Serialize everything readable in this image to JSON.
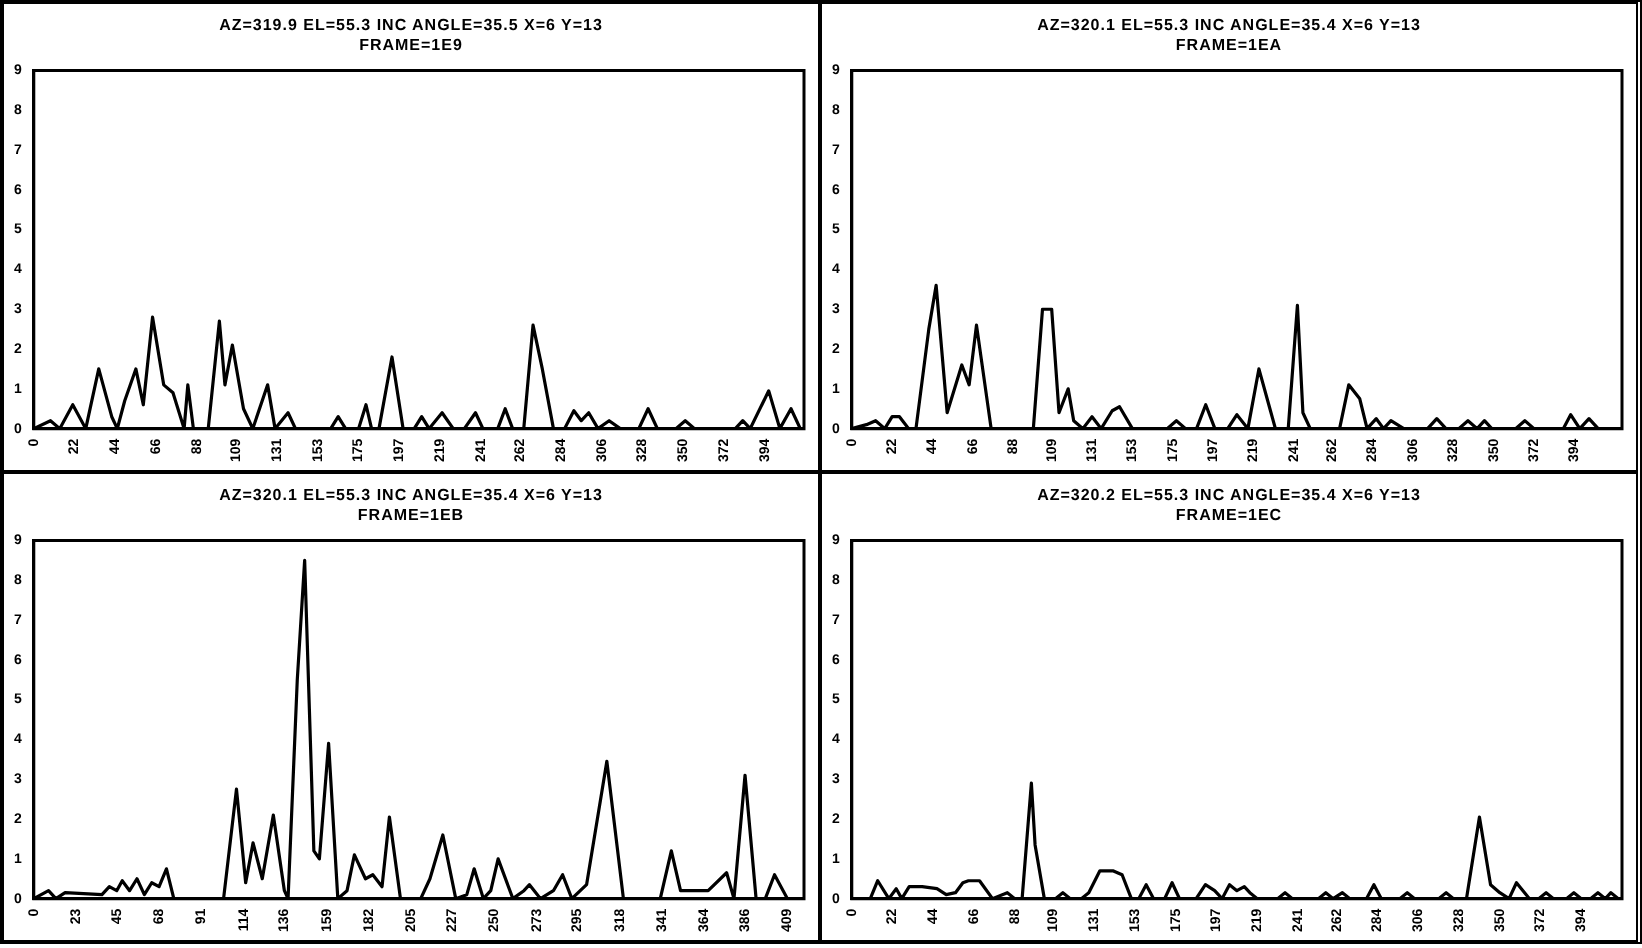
{
  "chart_data": [
    {
      "type": "line",
      "title": "AZ=319.9 EL=55.3 INC ANGLE=35.5 X=6 Y=13",
      "subtitle": "FRAME=1E9",
      "color": "#000000",
      "marker": "none",
      "grid": false,
      "legend": false,
      "x": [
        0,
        9,
        14,
        21,
        28,
        35,
        42,
        45,
        49,
        55,
        59,
        64,
        70,
        75,
        81,
        83,
        86,
        94,
        100,
        103,
        107,
        113,
        118,
        126,
        130,
        137,
        141,
        160,
        164,
        168,
        175,
        179,
        182,
        186,
        193,
        199,
        205,
        209,
        213,
        220,
        226,
        232,
        238,
        242,
        250,
        254,
        258,
        264,
        269,
        274,
        280,
        286,
        291,
        295,
        299,
        304,
        310,
        316,
        326,
        331,
        336,
        346,
        351,
        356,
        378,
        382,
        386,
        396,
        402,
        408,
        413
      ],
      "values": [
        0,
        0.2,
        0,
        0.6,
        0,
        1.5,
        0.3,
        0,
        0.7,
        1.5,
        0.6,
        2.8,
        1.1,
        0.9,
        0,
        1.1,
        0,
        0,
        2.7,
        1.1,
        2.1,
        0.5,
        0,
        1.1,
        0,
        0.4,
        0,
        0,
        0.3,
        0,
        0,
        0.6,
        0,
        0,
        1.8,
        0,
        0,
        0.3,
        0,
        0.4,
        0,
        0,
        0.4,
        0,
        0,
        0.5,
        0,
        0,
        2.6,
        1.5,
        0,
        0,
        0.45,
        0.2,
        0.4,
        0,
        0.2,
        0,
        0,
        0.5,
        0,
        0,
        0.2,
        0,
        0,
        0.2,
        0,
        0.95,
        0,
        0.5,
        0
      ],
      "xlim": [
        0,
        415
      ],
      "xticks": [
        0,
        22,
        44,
        66,
        88,
        109,
        131,
        153,
        175,
        197,
        219,
        241,
        262,
        284,
        306,
        328,
        350,
        372,
        394
      ],
      "ylim": [
        0,
        9
      ],
      "yticks": [
        0,
        1,
        2,
        3,
        4,
        5,
        6,
        7,
        8,
        9
      ]
    },
    {
      "type": "line",
      "title": "AZ=320.1 EL=55.3 INC ANGLE=35.4 X=6 Y=13",
      "subtitle": "FRAME=1EA",
      "color": "#000000",
      "marker": "none",
      "grid": false,
      "legend": false,
      "x": [
        0,
        8,
        13,
        18,
        22,
        26,
        31,
        35,
        42,
        46,
        52,
        60,
        64,
        68,
        76,
        99,
        104,
        109,
        113,
        118,
        121,
        126,
        131,
        136,
        142,
        146,
        153,
        172,
        177,
        182,
        188,
        193,
        198,
        205,
        210,
        216,
        222,
        228,
        231,
        238,
        243,
        246,
        250,
        255,
        266,
        271,
        277,
        281,
        286,
        290,
        294,
        301,
        306,
        314,
        319,
        324,
        331,
        336,
        341,
        345,
        349,
        362,
        367,
        372,
        388,
        392,
        397,
        402,
        407
      ],
      "values": [
        0,
        0.1,
        0.2,
        0,
        0.3,
        0.3,
        0,
        0,
        2.5,
        3.6,
        0.4,
        1.6,
        1.1,
        2.6,
        0,
        0,
        3,
        3,
        0.4,
        1,
        0.2,
        0,
        0.3,
        0,
        0.45,
        0.55,
        0,
        0,
        0.2,
        0,
        0,
        0.6,
        0,
        0,
        0.35,
        0,
        1.5,
        0.5,
        0,
        0,
        3.1,
        0.4,
        0,
        0,
        0,
        1.1,
        0.75,
        0,
        0.25,
        0,
        0.2,
        0,
        0,
        0,
        0.25,
        0,
        0,
        0.2,
        0,
        0.2,
        0,
        0,
        0.2,
        0,
        0,
        0.35,
        0,
        0.25,
        0
      ],
      "xlim": [
        0,
        420
      ],
      "xticks": [
        0,
        22,
        44,
        66,
        88,
        109,
        131,
        153,
        175,
        197,
        219,
        241,
        262,
        284,
        306,
        328,
        350,
        372,
        394
      ],
      "ylim": [
        0,
        9
      ],
      "yticks": [
        0,
        1,
        2,
        3,
        4,
        5,
        6,
        7,
        8,
        9
      ]
    },
    {
      "type": "line",
      "title": "AZ=320.1 EL=55.3 INC ANGLE=35.4 X=6 Y=13",
      "subtitle": "FRAME=1EB",
      "color": "#000000",
      "marker": "none",
      "grid": false,
      "legend": false,
      "x": [
        0,
        8,
        12,
        17,
        37,
        41,
        45,
        48,
        52,
        56,
        60,
        64,
        68,
        72,
        76,
        103,
        110,
        115,
        119,
        124,
        130,
        136,
        138,
        143,
        147,
        152,
        155,
        160,
        165,
        170,
        174,
        180,
        184,
        189,
        193,
        199,
        210,
        215,
        222,
        229,
        235,
        239,
        244,
        248,
        252,
        260,
        266,
        269,
        275,
        282,
        287,
        292,
        300,
        311,
        320,
        340,
        346,
        351,
        366,
        376,
        380,
        386,
        392,
        397,
        402,
        409
      ],
      "values": [
        0,
        0.2,
        0,
        0.15,
        0.1,
        0.3,
        0.2,
        0.45,
        0.2,
        0.5,
        0.1,
        0.4,
        0.3,
        0.75,
        0,
        0,
        2.75,
        0.4,
        1.4,
        0.5,
        2.1,
        0.2,
        0,
        5.5,
        8.5,
        1.2,
        1,
        3.9,
        0,
        0.2,
        1.1,
        0.5,
        0.6,
        0.3,
        2.05,
        0,
        0,
        0.5,
        1.6,
        0,
        0.1,
        0.75,
        0,
        0.2,
        1,
        0,
        0.2,
        0.35,
        0,
        0.2,
        0.6,
        0,
        0.35,
        3.45,
        0,
        0,
        1.2,
        0.2,
        0.2,
        0.65,
        0,
        3.1,
        0,
        0,
        0.6,
        0
      ],
      "xlim": [
        0,
        418
      ],
      "xticks": [
        0,
        23,
        45,
        68,
        91,
        114,
        136,
        159,
        182,
        205,
        227,
        250,
        273,
        295,
        318,
        341,
        364,
        386,
        409
      ],
      "ylim": [
        0,
        9
      ],
      "yticks": [
        0,
        1,
        2,
        3,
        4,
        5,
        6,
        7,
        8,
        9
      ]
    },
    {
      "type": "line",
      "title": "AZ=320.2 EL=55.3 INC ANGLE=35.4 X=6 Y=13",
      "subtitle": "FRAME=1EC",
      "color": "#000000",
      "marker": "none",
      "grid": false,
      "legend": false,
      "x": [
        0,
        10,
        14,
        20,
        24,
        27,
        31,
        35,
        38,
        46,
        51,
        56,
        60,
        63,
        69,
        76,
        84,
        88,
        92,
        97,
        99,
        104,
        110,
        114,
        118,
        124,
        128,
        134,
        141,
        146,
        151,
        155,
        159,
        163,
        169,
        173,
        177,
        186,
        191,
        196,
        200,
        204,
        208,
        212,
        215,
        219,
        230,
        234,
        238,
        252,
        256,
        260,
        265,
        269,
        278,
        282,
        286,
        296,
        300,
        304,
        317,
        321,
        325,
        332,
        339,
        345,
        350,
        355,
        359,
        366,
        371,
        375,
        379,
        386,
        390,
        394,
        399,
        403,
        407,
        410,
        414
      ],
      "values": [
        0,
        0,
        0.45,
        0,
        0.25,
        0,
        0.3,
        0.3,
        0.3,
        0.25,
        0.1,
        0.15,
        0.4,
        0.45,
        0.45,
        0,
        0.15,
        0,
        0,
        2.9,
        1.35,
        0,
        0,
        0.15,
        0,
        0,
        0.15,
        0.7,
        0.7,
        0.6,
        0,
        0,
        0.35,
        0,
        0,
        0.4,
        0,
        0,
        0.35,
        0.2,
        0,
        0.35,
        0.2,
        0.3,
        0.15,
        0,
        0,
        0.15,
        0,
        0,
        0.15,
        0,
        0.15,
        0,
        0,
        0.35,
        0,
        0,
        0.15,
        0,
        0,
        0.15,
        0,
        0,
        2.05,
        0.35,
        0.15,
        0,
        0.4,
        0,
        0,
        0.15,
        0,
        0,
        0.15,
        0,
        0,
        0.15,
        0,
        0.15,
        0
      ],
      "xlim": [
        0,
        416
      ],
      "xticks": [
        0,
        22,
        44,
        66,
        88,
        109,
        131,
        153,
        175,
        197,
        219,
        241,
        262,
        284,
        306,
        328,
        350,
        372,
        394
      ],
      "ylim": [
        0,
        9
      ],
      "yticks": [
        0,
        1,
        2,
        3,
        4,
        5,
        6,
        7,
        8,
        9
      ]
    }
  ]
}
